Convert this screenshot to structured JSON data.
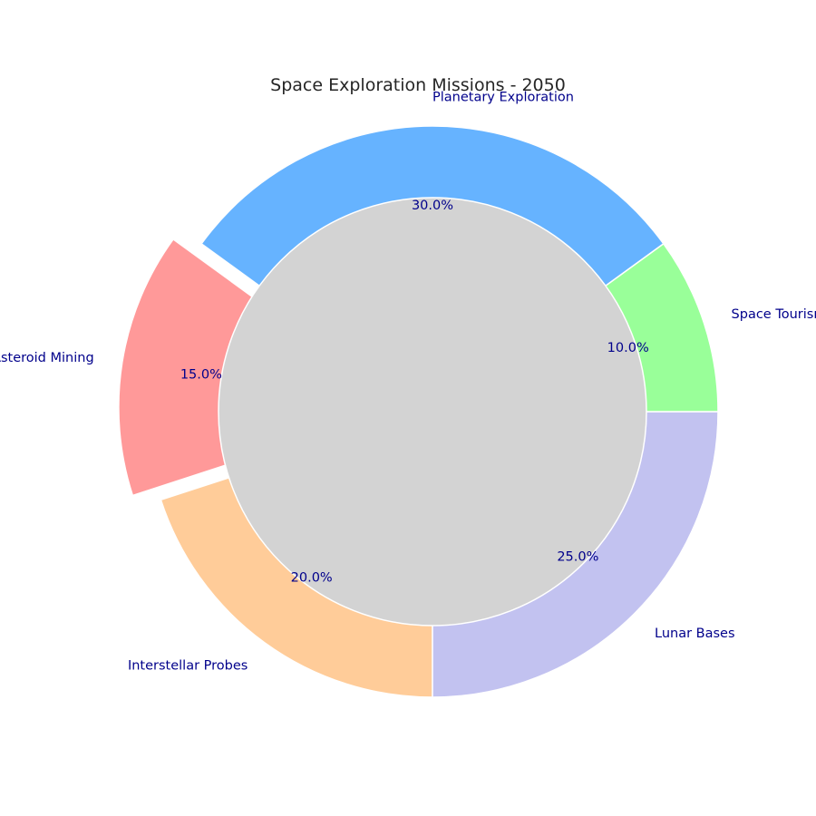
{
  "chart_data": {
    "type": "pie",
    "title": "Space Exploration Missions - 2050",
    "categories": [
      "Planetary Exploration",
      "Asteroid Mining",
      "Interstellar Probes",
      "Lunar Bases",
      "Space Tourism"
    ],
    "values": [
      30,
      15,
      20,
      25,
      10
    ],
    "percent_labels": [
      "30.0%",
      "15.0%",
      "20.0%",
      "25.0%",
      "10.0%"
    ],
    "colors": [
      "#66b3ff",
      "#ff9999",
      "#ffcc99",
      "#c2c2f0",
      "#99ff99"
    ],
    "exploded": [
      "Asteroid Mining"
    ],
    "center_fill": "#d3d3d3",
    "label_color": "#00008b",
    "start_angle_deg": 36,
    "direction": "counterclockwise",
    "style": "donut"
  }
}
